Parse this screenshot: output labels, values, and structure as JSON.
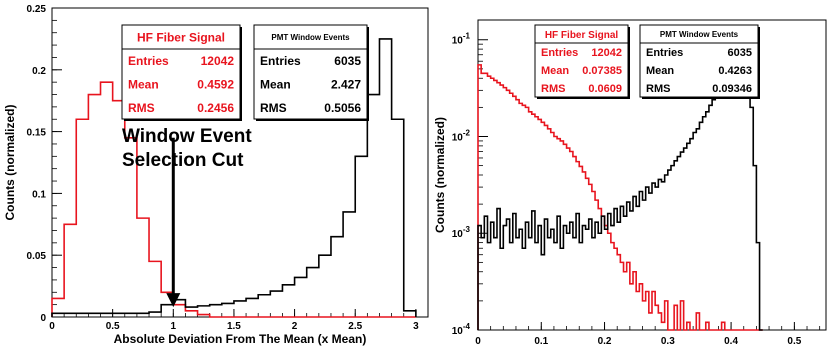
{
  "chart_data": [
    {
      "type": "histogram",
      "title": "",
      "xlabel": "Absolute Deviation From The Mean (x Mean)",
      "ylabel": "Counts (normalized)",
      "xlim": [
        0,
        3.1
      ],
      "ylim": [
        0,
        0.25
      ],
      "yscale": "linear",
      "x_ticks": [
        "0",
        "0.5",
        "1",
        "1.5",
        "2",
        "2.5",
        "3"
      ],
      "y_ticks": [
        "0",
        "0.05",
        "0.1",
        "0.15",
        "0.2",
        "0.25"
      ],
      "bin_width": 0.1,
      "series": [
        {
          "color": "#e8141e",
          "bins_start": 0,
          "values": [
            0.015,
            0.075,
            0.16,
            0.18,
            0.19,
            0.175,
            0.145,
            0.08,
            0.045,
            0.02,
            0.01,
            0.005,
            0.002,
            0,
            0,
            0,
            0,
            0,
            0,
            0,
            0,
            0,
            0,
            0,
            0,
            0,
            0,
            0,
            0,
            0
          ]
        },
        {
          "color": "#000000",
          "bins_start": 0,
          "values": [
            0.003,
            0.003,
            0.003,
            0.003,
            0.003,
            0.003,
            0.003,
            0.003,
            0.004,
            0.01,
            0.014,
            0.008,
            0.009,
            0.01,
            0.011,
            0.013,
            0.015,
            0.018,
            0.021,
            0.026,
            0.032,
            0.04,
            0.05,
            0.065,
            0.085,
            0.13,
            0.18,
            0.225,
            0.16,
            0.005
          ]
        }
      ],
      "stat_boxes": [
        {
          "title": "HF Fiber Signal",
          "color": "#e8141e",
          "rows": [
            {
              "label": "Entries",
              "value": "12042"
            },
            {
              "label": "Mean",
              "value": "0.4592"
            },
            {
              "label": "RMS",
              "value": "0.2456"
            }
          ]
        },
        {
          "title": "PMT Window Events",
          "color": "#000000",
          "rows": [
            {
              "label": "Entries",
              "value": "6035"
            },
            {
              "label": "Mean",
              "value": "2.427"
            },
            {
              "label": "RMS",
              "value": "0.5056"
            }
          ]
        }
      ],
      "annotation": {
        "lines": [
          "Window Event",
          "Selection Cut"
        ],
        "arrow_x": 1.0,
        "arrow_to_y": 0.008,
        "arrow_from_y": 0.145
      }
    },
    {
      "type": "histogram",
      "title": "",
      "xlabel": "",
      "ylabel": "Counts (normalized)",
      "xlim": [
        0,
        0.55
      ],
      "ylim": [
        0.0001,
        0.16
      ],
      "yscale": "log",
      "x_ticks": [
        "0",
        "0.1",
        "0.2",
        "0.3",
        "0.4",
        "0.5"
      ],
      "y_ticks": [
        "10-4",
        "10-3",
        "10-2",
        "10-1"
      ],
      "bin_width": 0.005,
      "series": [
        {
          "color": "#e8141e",
          "bins_start": 0,
          "values": [
            0.055,
            0.045,
            0.045,
            0.042,
            0.04,
            0.038,
            0.036,
            0.034,
            0.032,
            0.03,
            0.028,
            0.026,
            0.024,
            0.022,
            0.021,
            0.02,
            0.018,
            0.017,
            0.016,
            0.015,
            0.014,
            0.013,
            0.012,
            0.011,
            0.01,
            0.0095,
            0.009,
            0.0083,
            0.0076,
            0.007,
            0.0062,
            0.0055,
            0.0049,
            0.0043,
            0.0037,
            0.0032,
            0.0027,
            0.0022,
            0.0018,
            0.0015,
            0.0012,
            0.001,
            0.0008,
            0.0007,
            0.0006,
            0.0005,
            0.0004,
            0.0005,
            0.0003,
            0.0004,
            0.00025,
            0.0003,
            0.0002,
            0.00025,
            0.00015,
            0.00025,
            0.00018,
            0.00015,
            0.00012,
            0.0002,
            0.0001,
            0.0001,
            0.00018,
            0.0001,
            0.0002,
            0.0001,
            0.00012,
            0.0001,
            0.0001,
            0.00015,
            0.0001,
            0.0001,
            0.00012,
            0.0001,
            0.0001,
            0.0001,
            0.0001,
            0.00012,
            0.0001,
            0.0001,
            0.0001,
            0.0001,
            0.0001,
            0.0001,
            0.0001,
            0.0001,
            0.0001,
            0.0001,
            0.0001,
            0.0001
          ]
        },
        {
          "color": "#000000",
          "bins_start": 0,
          "values": [
            0.0012,
            0.0009,
            0.0015,
            0.0008,
            0.0013,
            0.0009,
            0.0018,
            0.0007,
            0.0012,
            0.0014,
            0.0008,
            0.0016,
            0.0009,
            0.0011,
            0.0007,
            0.0013,
            0.0009,
            0.0017,
            0.0008,
            0.0012,
            0.0006,
            0.0014,
            0.0009,
            0.0011,
            0.0008,
            0.0015,
            0.0007,
            0.0012,
            0.001,
            0.0013,
            0.0009,
            0.0016,
            0.0008,
            0.0012,
            0.0011,
            0.0014,
            0.0009,
            0.0013,
            0.001,
            0.0015,
            0.0011,
            0.0016,
            0.0012,
            0.0018,
            0.0013,
            0.0019,
            0.0015,
            0.0021,
            0.0017,
            0.0024,
            0.0019,
            0.0027,
            0.0022,
            0.003,
            0.0026,
            0.0033,
            0.003,
            0.0036,
            0.0034,
            0.004,
            0.0045,
            0.005,
            0.0056,
            0.0062,
            0.0069,
            0.0076,
            0.0085,
            0.0095,
            0.011,
            0.012,
            0.014,
            0.016,
            0.018,
            0.021,
            0.024,
            0.028,
            0.033,
            0.038,
            0.045,
            0.053,
            0.062,
            0.072,
            0.085,
            0.095,
            0.08,
            0.05,
            0.02,
            0.005,
            0.0008,
            0.0001
          ]
        }
      ],
      "stat_boxes": [
        {
          "title": "HF Fiber Signal",
          "color": "#e8141e",
          "rows": [
            {
              "label": "Entries",
              "value": "12042"
            },
            {
              "label": "Mean",
              "value": "0.07385"
            },
            {
              "label": "RMS",
              "value": "0.0609"
            }
          ]
        },
        {
          "title": "PMT Window Events",
          "color": "#000000",
          "rows": [
            {
              "label": "Entries",
              "value": "6035"
            },
            {
              "label": "Mean",
              "value": "0.4263"
            },
            {
              "label": "RMS",
              "value": "0.09346"
            }
          ]
        }
      ]
    }
  ]
}
